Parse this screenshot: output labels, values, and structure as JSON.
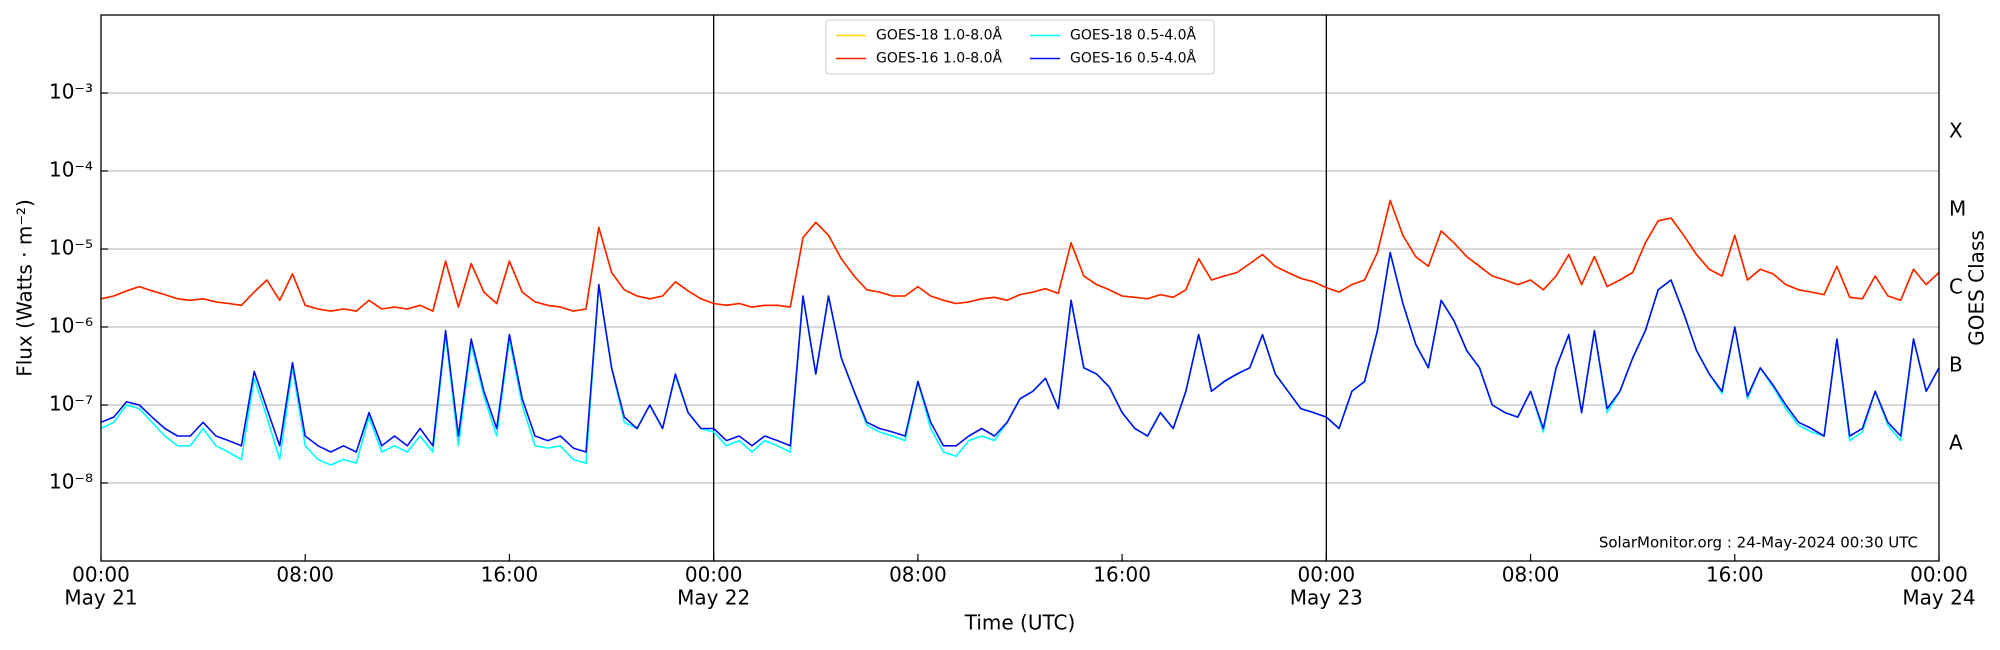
{
  "chart_data": {
    "type": "line",
    "xlabel": "Time (UTC)",
    "ylabel": "Flux (Watts · m⁻²)",
    "y2label": "GOES Class",
    "annotation": "SolarMonitor.org : 24-May-2024 00:30 UTC",
    "log_scale": true,
    "grid": true,
    "legend_position": "upper center",
    "legend_columns": 2,
    "xlim": [
      0,
      72
    ],
    "ylim": [
      1e-09,
      0.01
    ],
    "xticks": [
      {
        "value": 0,
        "label": "00:00",
        "date": "May 21"
      },
      {
        "value": 8,
        "label": "08:00"
      },
      {
        "value": 16,
        "label": "16:00"
      },
      {
        "value": 24,
        "label": "00:00",
        "date": "May 22"
      },
      {
        "value": 32,
        "label": "08:00"
      },
      {
        "value": 40,
        "label": "16:00"
      },
      {
        "value": 48,
        "label": "00:00",
        "date": "May 23"
      },
      {
        "value": 56,
        "label": "08:00"
      },
      {
        "value": 64,
        "label": "16:00"
      },
      {
        "value": 72,
        "label": "00:00",
        "date": "May 24"
      }
    ],
    "yticks": [
      {
        "value": 1e-08,
        "label": "10⁻⁸"
      },
      {
        "value": 1e-07,
        "label": "10⁻⁷"
      },
      {
        "value": 1e-06,
        "label": "10⁻⁶"
      },
      {
        "value": 1e-05,
        "label": "10⁻⁵"
      },
      {
        "value": 0.0001,
        "label": "10⁻⁴"
      },
      {
        "value": 0.001,
        "label": "10⁻³"
      }
    ],
    "y2lim": [
      1e-09,
      0.01
    ],
    "y2ticks": [
      {
        "value": 3.16e-08,
        "label": "A"
      },
      {
        "value": 3.16e-07,
        "label": "B"
      },
      {
        "value": 3.16e-06,
        "label": "C"
      },
      {
        "value": 3.16e-05,
        "label": "M"
      },
      {
        "value": 0.000316,
        "label": "X"
      }
    ],
    "vlines": [
      24,
      48
    ],
    "x": [
      0,
      0.5,
      1,
      1.5,
      2,
      2.5,
      3,
      3.5,
      4,
      4.5,
      5,
      5.5,
      6,
      6.5,
      7,
      7.5,
      8,
      8.5,
      9,
      9.5,
      10,
      10.5,
      11,
      11.5,
      12,
      12.5,
      13,
      13.5,
      14,
      14.5,
      15,
      15.5,
      16,
      16.5,
      17,
      17.5,
      18,
      18.5,
      19,
      19.5,
      20,
      20.5,
      21,
      21.5,
      22,
      22.5,
      23,
      23.5,
      24,
      24.5,
      25,
      25.5,
      26,
      26.5,
      27,
      27.5,
      28,
      28.5,
      29,
      29.5,
      30,
      30.5,
      31,
      31.5,
      32,
      32.5,
      33,
      33.5,
      34,
      34.5,
      35,
      35.5,
      36,
      36.5,
      37,
      37.5,
      38,
      38.5,
      39,
      39.5,
      40,
      40.5,
      41,
      41.5,
      42,
      42.5,
      43,
      43.5,
      44,
      44.5,
      45,
      45.5,
      46,
      46.5,
      47,
      47.5,
      48,
      48.5,
      49,
      49.5,
      50,
      50.5,
      51,
      51.5,
      52,
      52.5,
      53,
      53.5,
      54,
      54.5,
      55,
      55.5,
      56,
      56.5,
      57,
      57.5,
      58,
      58.5,
      59,
      59.5,
      60,
      60.5,
      61,
      61.5,
      62,
      62.5,
      63,
      63.5,
      64,
      64.5,
      65,
      65.5,
      66,
      66.5,
      67,
      67.5,
      68,
      68.5,
      69,
      69.5,
      70,
      70.5,
      71,
      71.5,
      72
    ],
    "series": [
      {
        "name": "GOES-18 1.0-8.0Å",
        "color": "#ffd700",
        "values": [
          2.3e-06,
          2.5e-06,
          2.9e-06,
          3.3e-06,
          2.9e-06,
          2.6e-06,
          2.3e-06,
          2.2e-06,
          2.3e-06,
          2.1e-06,
          2e-06,
          1.9e-06,
          2.8e-06,
          4e-06,
          2.2e-06,
          4.8e-06,
          1.9e-06,
          1.7e-06,
          1.6e-06,
          1.7e-06,
          1.6e-06,
          2.2e-06,
          1.7e-06,
          1.8e-06,
          1.7e-06,
          1.9e-06,
          1.6e-06,
          7e-06,
          1.8e-06,
          6.5e-06,
          2.8e-06,
          2e-06,
          7e-06,
          2.8e-06,
          2.1e-06,
          1.9e-06,
          1.8e-06,
          1.6e-06,
          1.7e-06,
          1.9e-05,
          5e-06,
          3e-06,
          2.5e-06,
          2.3e-06,
          2.5e-06,
          3.8e-06,
          2.9e-06,
          2.3e-06,
          2e-06,
          1.9e-06,
          2e-06,
          1.8e-06,
          1.9e-06,
          1.9e-06,
          1.8e-06,
          1.4e-05,
          2.2e-05,
          1.5e-05,
          7.5e-06,
          4.5e-06,
          3e-06,
          2.8e-06,
          2.5e-06,
          2.5e-06,
          3.3e-06,
          2.5e-06,
          2.2e-06,
          2e-06,
          2.1e-06,
          2.3e-06,
          2.4e-06,
          2.2e-06,
          2.6e-06,
          2.8e-06,
          3.1e-06,
          2.7e-06,
          1.2e-05,
          4.5e-06,
          3.5e-06,
          3e-06,
          2.5e-06,
          2.4e-06,
          2.3e-06,
          2.6e-06,
          2.4e-06,
          3e-06,
          7.5e-06,
          4e-06,
          4.5e-06,
          5e-06,
          6.5e-06,
          8.5e-06,
          6e-06,
          5e-06,
          4.2e-06,
          3.8e-06,
          3.2e-06,
          2.8e-06,
          3.5e-06,
          4e-06,
          9e-06,
          4.2e-05,
          1.5e-05,
          8e-06,
          6e-06,
          1.7e-05,
          1.2e-05,
          8e-06,
          6e-06,
          4.5e-06,
          4e-06,
          3.5e-06,
          4e-06,
          3e-06,
          4.5e-06,
          8.5e-06,
          3.5e-06,
          8e-06,
          3.3e-06,
          4e-06,
          5e-06,
          1.2e-05,
          2.3e-05,
          2.5e-05,
          1.5e-05,
          8.5e-06,
          5.5e-06,
          4.5e-06,
          1.5e-05,
          4e-06,
          5.5e-06,
          4.8e-06,
          3.5e-06,
          3e-06,
          2.8e-06,
          2.6e-06,
          6e-06,
          2.4e-06,
          2.3e-06,
          4.5e-06,
          2.5e-06,
          2.2e-06,
          5.5e-06,
          3.5e-06,
          5e-06
        ]
      },
      {
        "name": "GOES-16 1.0-8.0Å",
        "color": "#ff2000",
        "values": [
          2.3e-06,
          2.5e-06,
          2.9e-06,
          3.3e-06,
          2.9e-06,
          2.6e-06,
          2.3e-06,
          2.2e-06,
          2.3e-06,
          2.1e-06,
          2e-06,
          1.9e-06,
          2.8e-06,
          4e-06,
          2.2e-06,
          4.8e-06,
          1.9e-06,
          1.7e-06,
          1.6e-06,
          1.7e-06,
          1.6e-06,
          2.2e-06,
          1.7e-06,
          1.8e-06,
          1.7e-06,
          1.9e-06,
          1.6e-06,
          7e-06,
          1.8e-06,
          6.5e-06,
          2.8e-06,
          2e-06,
          7e-06,
          2.8e-06,
          2.1e-06,
          1.9e-06,
          1.8e-06,
          1.6e-06,
          1.7e-06,
          1.9e-05,
          5e-06,
          3e-06,
          2.5e-06,
          2.3e-06,
          2.5e-06,
          3.8e-06,
          2.9e-06,
          2.3e-06,
          2e-06,
          1.9e-06,
          2e-06,
          1.8e-06,
          1.9e-06,
          1.9e-06,
          1.8e-06,
          1.4e-05,
          2.2e-05,
          1.5e-05,
          7.5e-06,
          4.5e-06,
          3e-06,
          2.8e-06,
          2.5e-06,
          2.5e-06,
          3.3e-06,
          2.5e-06,
          2.2e-06,
          2e-06,
          2.1e-06,
          2.3e-06,
          2.4e-06,
          2.2e-06,
          2.6e-06,
          2.8e-06,
          3.1e-06,
          2.7e-06,
          1.2e-05,
          4.5e-06,
          3.5e-06,
          3e-06,
          2.5e-06,
          2.4e-06,
          2.3e-06,
          2.6e-06,
          2.4e-06,
          3e-06,
          7.5e-06,
          4e-06,
          4.5e-06,
          5e-06,
          6.5e-06,
          8.5e-06,
          6e-06,
          5e-06,
          4.2e-06,
          3.8e-06,
          3.2e-06,
          2.8e-06,
          3.5e-06,
          4e-06,
          9e-06,
          4.2e-05,
          1.5e-05,
          8e-06,
          6e-06,
          1.7e-05,
          1.2e-05,
          8e-06,
          6e-06,
          4.5e-06,
          4e-06,
          3.5e-06,
          4e-06,
          3e-06,
          4.5e-06,
          8.5e-06,
          3.5e-06,
          8e-06,
          3.3e-06,
          4e-06,
          5e-06,
          1.2e-05,
          2.3e-05,
          2.5e-05,
          1.5e-05,
          8.5e-06,
          5.5e-06,
          4.5e-06,
          1.5e-05,
          4e-06,
          5.5e-06,
          4.8e-06,
          3.5e-06,
          3e-06,
          2.8e-06,
          2.6e-06,
          6e-06,
          2.4e-06,
          2.3e-06,
          4.5e-06,
          2.5e-06,
          2.2e-06,
          5.5e-06,
          3.5e-06,
          5e-06
        ]
      },
      {
        "name": "GOES-18 0.5-4.0Å",
        "color": "#00ffff",
        "values": [
          5e-08,
          6e-08,
          1e-07,
          9e-08,
          6e-08,
          4e-08,
          3e-08,
          3e-08,
          5e-08,
          3e-08,
          2.5e-08,
          2e-08,
          2.2e-07,
          7e-08,
          2e-08,
          3e-07,
          3e-08,
          2e-08,
          1.7e-08,
          2e-08,
          1.8e-08,
          7e-08,
          2.5e-08,
          3e-08,
          2.5e-08,
          4e-08,
          2.5e-08,
          8e-07,
          3e-08,
          6e-07,
          1.3e-07,
          4e-08,
          7e-07,
          1e-07,
          3e-08,
          2.8e-08,
          3e-08,
          2e-08,
          1.8e-08,
          3.4e-06,
          3e-07,
          6e-08,
          5e-08,
          1e-07,
          5e-08,
          2.4e-07,
          8e-08,
          5e-08,
          4.5e-08,
          3e-08,
          3.5e-08,
          2.5e-08,
          3.5e-08,
          3e-08,
          2.5e-08,
          2.5e-06,
          2.5e-07,
          2.5e-06,
          4e-07,
          1.5e-07,
          5.5e-08,
          4.5e-08,
          4e-08,
          3.5e-08,
          2e-07,
          5e-08,
          2.5e-08,
          2.2e-08,
          3.5e-08,
          4e-08,
          3.5e-08,
          6e-08,
          1.2e-07,
          1.5e-07,
          2.2e-07,
          9e-08,
          2.2e-06,
          3e-07,
          2.5e-07,
          1.7e-07,
          8e-08,
          5e-08,
          4e-08,
          8e-08,
          5e-08,
          1.5e-07,
          8e-07,
          1.5e-07,
          2e-07,
          2.5e-07,
          3e-07,
          8e-07,
          2.5e-07,
          1.5e-07,
          9e-08,
          8e-08,
          7e-08,
          5e-08,
          1.5e-07,
          2e-07,
          9e-07,
          9e-06,
          2e-06,
          6e-07,
          3e-07,
          2.2e-06,
          1.2e-06,
          5e-07,
          3e-07,
          1e-07,
          8e-08,
          7e-08,
          1.5e-07,
          4.5e-08,
          3e-07,
          8e-07,
          8e-08,
          9e-07,
          8e-08,
          1.5e-07,
          4e-07,
          9e-07,
          3e-06,
          4e-06,
          1.5e-06,
          5e-07,
          2.5e-07,
          1.4e-07,
          1e-06,
          1.2e-07,
          3e-07,
          1.7e-07,
          9e-08,
          5.5e-08,
          4.5e-08,
          4e-08,
          7e-07,
          3.5e-08,
          4.5e-08,
          1.5e-07,
          5.5e-08,
          3.5e-08,
          7e-07,
          1.5e-07,
          3e-07
        ]
      },
      {
        "name": "GOES-16 0.5-4.0Å",
        "color": "#0010ee",
        "values": [
          6e-08,
          7e-08,
          1.1e-07,
          1e-07,
          7e-08,
          5e-08,
          4e-08,
          4e-08,
          6e-08,
          4e-08,
          3.5e-08,
          3e-08,
          2.7e-07,
          9e-08,
          3e-08,
          3.5e-07,
          4e-08,
          3e-08,
          2.5e-08,
          3e-08,
          2.5e-08,
          8e-08,
          3e-08,
          4e-08,
          3e-08,
          5e-08,
          3e-08,
          9e-07,
          4e-08,
          7e-07,
          1.5e-07,
          5e-08,
          8e-07,
          1.2e-07,
          4e-08,
          3.5e-08,
          4e-08,
          2.8e-08,
          2.5e-08,
          3.5e-06,
          3e-07,
          7e-08,
          5e-08,
          1e-07,
          5e-08,
          2.5e-07,
          8e-08,
          5e-08,
          5e-08,
          3.5e-08,
          4e-08,
          3e-08,
          4e-08,
          3.5e-08,
          3e-08,
          2.5e-06,
          2.5e-07,
          2.5e-06,
          4e-07,
          1.5e-07,
          6e-08,
          5e-08,
          4.5e-08,
          4e-08,
          2e-07,
          6e-08,
          3e-08,
          3e-08,
          4e-08,
          5e-08,
          4e-08,
          6e-08,
          1.2e-07,
          1.5e-07,
          2.2e-07,
          9e-08,
          2.2e-06,
          3e-07,
          2.5e-07,
          1.7e-07,
          8e-08,
          5e-08,
          4e-08,
          8e-08,
          5e-08,
          1.5e-07,
          8e-07,
          1.5e-07,
          2e-07,
          2.5e-07,
          3e-07,
          8e-07,
          2.5e-07,
          1.5e-07,
          9e-08,
          8e-08,
          7e-08,
          5e-08,
          1.5e-07,
          2e-07,
          9e-07,
          9e-06,
          2e-06,
          6e-07,
          3e-07,
          2.2e-06,
          1.2e-06,
          5e-07,
          3e-07,
          1e-07,
          8e-08,
          7e-08,
          1.5e-07,
          5e-08,
          3e-07,
          8e-07,
          8e-08,
          9e-07,
          9e-08,
          1.5e-07,
          4e-07,
          9e-07,
          3e-06,
          4e-06,
          1.5e-06,
          5e-07,
          2.5e-07,
          1.5e-07,
          1e-06,
          1.3e-07,
          3e-07,
          1.8e-07,
          1e-07,
          6e-08,
          5e-08,
          4e-08,
          7e-07,
          4e-08,
          5e-08,
          1.5e-07,
          6e-08,
          4e-08,
          7e-07,
          1.5e-07,
          3e-07
        ]
      }
    ]
  }
}
